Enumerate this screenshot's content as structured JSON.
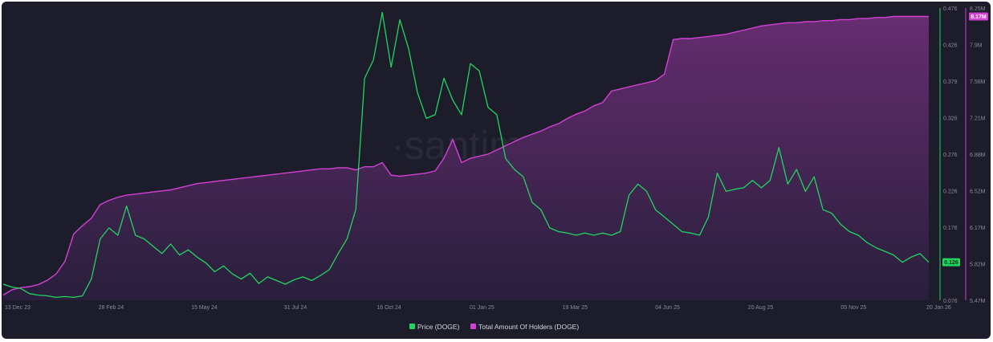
{
  "chart_data": {
    "type": "area",
    "watermark": "·santiment·",
    "x_ticks": [
      "13 Dec 23",
      "28 Feb 24",
      "15 May 24",
      "31 Jul 24",
      "16 Oct 24",
      "01 Jan 25",
      "19 Mar 25",
      "04 Jun 25",
      "20 Aug 25",
      "05 Nov 25",
      "20 Jan 26"
    ],
    "x_range": [
      "13 Dec 23",
      "20 Jan 26"
    ],
    "price_axis": {
      "ticks": [
        "0.476",
        "0.426",
        "0.379",
        "0.326",
        "0.276",
        "0.226",
        "0.176",
        "0.126",
        "0.076"
      ],
      "range": [
        0.076,
        0.476
      ]
    },
    "holders_axis": {
      "ticks": [
        "8.25M",
        "7.9M",
        "7.58M",
        "7.21M",
        "6.88M",
        "6.52M",
        "6.17M",
        "5.82M",
        "5.47M"
      ],
      "range": [
        5.47,
        8.25
      ],
      "unit": "M"
    },
    "series": [
      {
        "name": "Price (DOGE)",
        "color": "#1fd65f",
        "axis": "price",
        "current": "0.126",
        "points": [
          [
            0,
            0.098
          ],
          [
            1,
            0.094
          ],
          [
            2,
            0.092
          ],
          [
            3,
            0.085
          ],
          [
            4,
            0.083
          ],
          [
            5,
            0.082
          ],
          [
            6,
            0.08
          ],
          [
            7,
            0.081
          ],
          [
            8,
            0.08
          ],
          [
            9,
            0.082
          ],
          [
            10,
            0.105
          ],
          [
            11,
            0.16
          ],
          [
            12,
            0.175
          ],
          [
            13,
            0.165
          ],
          [
            14,
            0.205
          ],
          [
            15,
            0.165
          ],
          [
            16,
            0.16
          ],
          [
            17,
            0.15
          ],
          [
            18,
            0.14
          ],
          [
            19,
            0.153
          ],
          [
            20,
            0.138
          ],
          [
            21,
            0.145
          ],
          [
            22,
            0.135
          ],
          [
            23,
            0.127
          ],
          [
            24,
            0.115
          ],
          [
            25,
            0.123
          ],
          [
            26,
            0.112
          ],
          [
            27,
            0.105
          ],
          [
            28,
            0.113
          ],
          [
            29,
            0.099
          ],
          [
            30,
            0.108
          ],
          [
            31,
            0.103
          ],
          [
            32,
            0.098
          ],
          [
            33,
            0.104
          ],
          [
            34,
            0.108
          ],
          [
            35,
            0.103
          ],
          [
            36,
            0.11
          ],
          [
            37,
            0.118
          ],
          [
            38,
            0.14
          ],
          [
            39,
            0.16
          ],
          [
            40,
            0.2
          ],
          [
            41,
            0.38
          ],
          [
            42,
            0.405
          ],
          [
            43,
            0.47
          ],
          [
            44,
            0.395
          ],
          [
            45,
            0.46
          ],
          [
            46,
            0.42
          ],
          [
            47,
            0.36
          ],
          [
            48,
            0.325
          ],
          [
            49,
            0.33
          ],
          [
            50,
            0.38
          ],
          [
            51,
            0.35
          ],
          [
            52,
            0.33
          ],
          [
            53,
            0.4
          ],
          [
            54,
            0.39
          ],
          [
            55,
            0.34
          ],
          [
            56,
            0.33
          ],
          [
            57,
            0.27
          ],
          [
            58,
            0.255
          ],
          [
            59,
            0.245
          ],
          [
            60,
            0.21
          ],
          [
            61,
            0.2
          ],
          [
            62,
            0.175
          ],
          [
            63,
            0.17
          ],
          [
            64,
            0.168
          ],
          [
            65,
            0.165
          ],
          [
            66,
            0.168
          ],
          [
            67,
            0.165
          ],
          [
            68,
            0.168
          ],
          [
            69,
            0.165
          ],
          [
            70,
            0.17
          ],
          [
            71,
            0.22
          ],
          [
            72,
            0.235
          ],
          [
            73,
            0.225
          ],
          [
            74,
            0.2
          ],
          [
            75,
            0.19
          ],
          [
            76,
            0.18
          ],
          [
            77,
            0.17
          ],
          [
            78,
            0.168
          ],
          [
            79,
            0.165
          ],
          [
            80,
            0.19
          ],
          [
            81,
            0.25
          ],
          [
            82,
            0.225
          ],
          [
            83,
            0.228
          ],
          [
            84,
            0.23
          ],
          [
            85,
            0.24
          ],
          [
            86,
            0.23
          ],
          [
            87,
            0.24
          ],
          [
            88,
            0.285
          ],
          [
            89,
            0.235
          ],
          [
            90,
            0.255
          ],
          [
            91,
            0.225
          ],
          [
            92,
            0.245
          ],
          [
            93,
            0.2
          ],
          [
            94,
            0.195
          ],
          [
            95,
            0.18
          ],
          [
            96,
            0.17
          ],
          [
            97,
            0.165
          ],
          [
            98,
            0.155
          ],
          [
            99,
            0.148
          ],
          [
            100,
            0.143
          ],
          [
            101,
            0.138
          ],
          [
            102,
            0.128
          ],
          [
            103,
            0.135
          ],
          [
            104,
            0.14
          ],
          [
            105,
            0.128
          ]
        ]
      },
      {
        "name": "Total Amount Of Holders (DOGE)",
        "color": "#d440d4",
        "axis": "holders",
        "current": "8.17M",
        "points": [
          [
            0,
            5.52
          ],
          [
            1,
            5.57
          ],
          [
            2,
            5.59
          ],
          [
            3,
            5.6
          ],
          [
            4,
            5.62
          ],
          [
            5,
            5.66
          ],
          [
            6,
            5.72
          ],
          [
            7,
            5.84
          ],
          [
            8,
            6.1
          ],
          [
            9,
            6.18
          ],
          [
            10,
            6.25
          ],
          [
            11,
            6.38
          ],
          [
            12,
            6.42
          ],
          [
            13,
            6.45
          ],
          [
            14,
            6.47
          ],
          [
            15,
            6.48
          ],
          [
            16,
            6.49
          ],
          [
            17,
            6.5
          ],
          [
            18,
            6.51
          ],
          [
            19,
            6.52
          ],
          [
            20,
            6.54
          ],
          [
            21,
            6.56
          ],
          [
            22,
            6.58
          ],
          [
            23,
            6.59
          ],
          [
            24,
            6.6
          ],
          [
            25,
            6.61
          ],
          [
            26,
            6.62
          ],
          [
            27,
            6.63
          ],
          [
            28,
            6.64
          ],
          [
            29,
            6.65
          ],
          [
            30,
            6.66
          ],
          [
            31,
            6.67
          ],
          [
            32,
            6.68
          ],
          [
            33,
            6.69
          ],
          [
            34,
            6.7
          ],
          [
            35,
            6.71
          ],
          [
            36,
            6.72
          ],
          [
            37,
            6.72
          ],
          [
            38,
            6.73
          ],
          [
            39,
            6.73
          ],
          [
            40,
            6.71
          ],
          [
            41,
            6.74
          ],
          [
            42,
            6.74
          ],
          [
            43,
            6.78
          ],
          [
            44,
            6.66
          ],
          [
            45,
            6.65
          ],
          [
            46,
            6.66
          ],
          [
            47,
            6.67
          ],
          [
            48,
            6.68
          ],
          [
            49,
            6.7
          ],
          [
            50,
            6.82
          ],
          [
            51,
            7.0
          ],
          [
            52,
            6.78
          ],
          [
            53,
            6.82
          ],
          [
            54,
            6.84
          ],
          [
            55,
            6.86
          ],
          [
            56,
            6.9
          ],
          [
            57,
            6.94
          ],
          [
            58,
            6.98
          ],
          [
            59,
            7.02
          ],
          [
            60,
            7.05
          ],
          [
            61,
            7.08
          ],
          [
            62,
            7.12
          ],
          [
            63,
            7.15
          ],
          [
            64,
            7.2
          ],
          [
            65,
            7.24
          ],
          [
            66,
            7.27
          ],
          [
            67,
            7.32
          ],
          [
            68,
            7.35
          ],
          [
            69,
            7.46
          ],
          [
            70,
            7.48
          ],
          [
            71,
            7.5
          ],
          [
            72,
            7.52
          ],
          [
            73,
            7.54
          ],
          [
            74,
            7.56
          ],
          [
            75,
            7.62
          ],
          [
            76,
            7.95
          ],
          [
            77,
            7.96
          ],
          [
            78,
            7.96
          ],
          [
            79,
            7.97
          ],
          [
            80,
            7.98
          ],
          [
            81,
            7.99
          ],
          [
            82,
            8.0
          ],
          [
            83,
            8.02
          ],
          [
            84,
            8.04
          ],
          [
            85,
            8.06
          ],
          [
            86,
            8.08
          ],
          [
            87,
            8.09
          ],
          [
            88,
            8.1
          ],
          [
            89,
            8.11
          ],
          [
            90,
            8.11
          ],
          [
            91,
            8.12
          ],
          [
            92,
            8.12
          ],
          [
            93,
            8.13
          ],
          [
            94,
            8.13
          ],
          [
            95,
            8.14
          ],
          [
            96,
            8.14
          ],
          [
            97,
            8.15
          ],
          [
            98,
            8.15
          ],
          [
            99,
            8.16
          ],
          [
            100,
            8.16
          ],
          [
            101,
            8.17
          ],
          [
            102,
            8.17
          ],
          [
            103,
            8.17
          ],
          [
            104,
            8.17
          ],
          [
            105,
            8.17
          ]
        ]
      }
    ],
    "legend": {
      "placement": "bottom-center",
      "items": [
        "Price (DOGE)",
        "Total Amount Of Holders (DOGE)"
      ]
    },
    "grid": false,
    "background": "#1c1c2b"
  }
}
